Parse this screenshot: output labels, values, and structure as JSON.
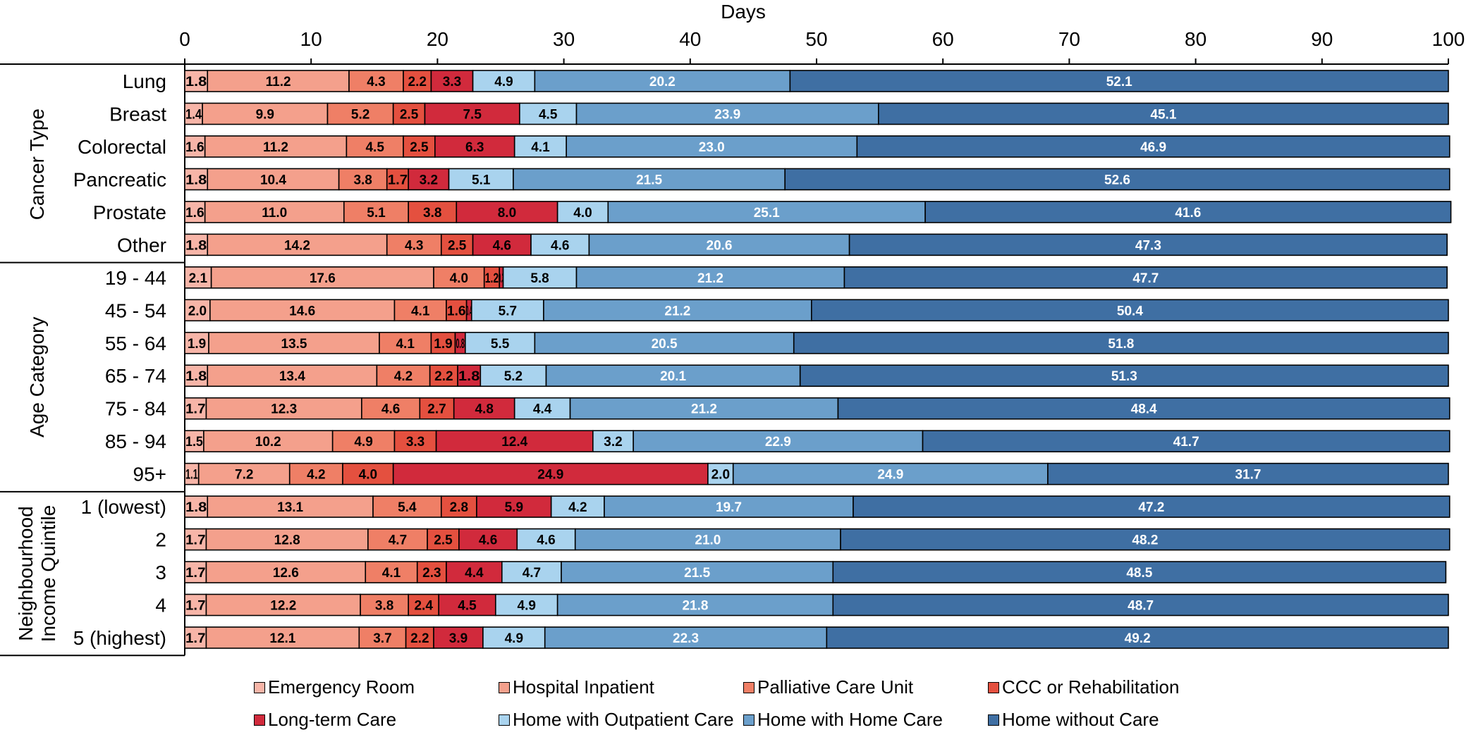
{
  "chart_data": {
    "type": "bar",
    "orientation": "horizontal-stacked",
    "xlabel": "Days",
    "xlim": [
      0,
      100
    ],
    "xticks": [
      "0",
      "10",
      "20",
      "30",
      "40",
      "50",
      "60",
      "70",
      "80",
      "90",
      "100"
    ],
    "legend_position": "bottom",
    "groups": [
      {
        "name": "Cancer Type",
        "lines": [
          "Cancer Type"
        ],
        "rows": [
          "Lung",
          "Breast",
          "Colorectal",
          "Pancreatic",
          "Prostate",
          "Other"
        ]
      },
      {
        "name": "Age Category",
        "lines": [
          "Age Category"
        ],
        "rows": [
          "19 - 44",
          "45 - 54",
          "55 - 64",
          "65 - 74",
          "75 - 84",
          "85 - 94",
          "95+"
        ]
      },
      {
        "name": "Neighbourhood Income Quintile",
        "lines": [
          "Neighbourhood",
          "Income Quintile"
        ],
        "rows": [
          "1 (lowest)",
          "2",
          "3",
          "4",
          "5 (highest)"
        ]
      }
    ],
    "categories": [
      "Lung",
      "Breast",
      "Colorectal",
      "Pancreatic",
      "Prostate",
      "Other",
      "19 - 44",
      "45 - 54",
      "55 - 64",
      "65 - 74",
      "75 - 84",
      "85 - 94",
      "95+",
      "1 (lowest)",
      "2",
      "3",
      "4",
      "5 (highest)"
    ],
    "series": [
      {
        "name": "Emergency Room",
        "color": "#f7b5a8",
        "values": [
          1.8,
          1.4,
          1.6,
          1.8,
          1.6,
          1.8,
          2.1,
          2.0,
          1.9,
          1.8,
          1.7,
          1.5,
          1.1,
          1.8,
          1.7,
          1.7,
          1.7,
          1.7
        ],
        "labels": [
          "1.8",
          "1.4",
          "1.6",
          "1.8",
          "1.6",
          "1.8",
          "2.1",
          "2.0",
          "1.9",
          "1.8",
          "1.7",
          "1.5",
          "1.1",
          "1.8",
          "1.7",
          "1.7",
          "1.7",
          "1.7"
        ]
      },
      {
        "name": "Hospital Inpatient",
        "color": "#f4a08c",
        "values": [
          11.2,
          9.9,
          11.2,
          10.4,
          11.0,
          14.2,
          17.6,
          14.6,
          13.5,
          13.4,
          12.3,
          10.2,
          7.2,
          13.1,
          12.8,
          12.6,
          12.2,
          12.1
        ],
        "labels": [
          "11.2",
          "9.9",
          "11.2",
          "10.4",
          "11.0",
          "14.2",
          "17.6",
          "14.6",
          "13.5",
          "13.4",
          "12.3",
          "10.2",
          "7.2",
          "13.1",
          "12.8",
          "12.6",
          "12.2",
          "12.1"
        ]
      },
      {
        "name": "Palliative Care Unit",
        "color": "#ef7f66",
        "values": [
          4.3,
          5.2,
          4.5,
          3.8,
          5.1,
          4.3,
          4.0,
          4.1,
          4.1,
          4.2,
          4.6,
          4.9,
          4.2,
          5.4,
          4.7,
          4.1,
          3.8,
          3.7
        ],
        "labels": [
          "4.3",
          "5.2",
          "4.5",
          "3.8",
          "5.1",
          "4.3",
          "4.0",
          "4.1",
          "4.1",
          "4.2",
          "4.6",
          "4.9",
          "4.2",
          "5.4",
          "4.7",
          "4.1",
          "3.8",
          "3.7"
        ]
      },
      {
        "name": "CCC or Rehabilitation",
        "color": "#e4503f",
        "values": [
          2.2,
          2.5,
          2.5,
          1.7,
          3.8,
          2.5,
          1.2,
          1.6,
          1.9,
          2.2,
          2.7,
          3.3,
          4.0,
          2.8,
          2.5,
          2.3,
          2.4,
          2.2
        ],
        "labels": [
          "2.2",
          "2.5",
          "2.5",
          "1.7",
          "3.8",
          "2.5",
          "1.2",
          "1.6",
          "1.9",
          "2.2",
          "2.7",
          "3.3",
          "4.0",
          "2.8",
          "2.5",
          "2.3",
          "2.4",
          "2.2"
        ]
      },
      {
        "name": "Long-term Care",
        "color": "#d12a3c",
        "values": [
          3.3,
          7.5,
          6.3,
          3.2,
          8.0,
          4.6,
          0.3,
          0.4,
          0.8,
          1.8,
          4.8,
          12.4,
          24.9,
          5.9,
          4.6,
          4.4,
          4.5,
          3.9
        ],
        "labels": [
          "3.3",
          "7.5",
          "6.3",
          "3.2",
          "8.0",
          "4.6",
          "0.3",
          "0.4",
          "0.8",
          "1.8",
          "4.8",
          "12.4",
          "24.9",
          "5.9",
          "4.6",
          "4.4",
          "4.5",
          "3.9"
        ]
      },
      {
        "name": "Home with Outpatient Care",
        "color": "#a9d3ee",
        "values": [
          4.9,
          4.5,
          4.1,
          5.1,
          4.0,
          4.6,
          5.8,
          5.7,
          5.5,
          5.2,
          4.4,
          3.2,
          2.0,
          4.2,
          4.6,
          4.7,
          4.9,
          4.9
        ],
        "labels": [
          "4.9",
          "4.5",
          "4.1",
          "5.1",
          "4.0",
          "4.6",
          "5.8",
          "5.7",
          "5.5",
          "5.2",
          "4.4",
          "3.2",
          "2.0",
          "4.2",
          "4.6",
          "4.7",
          "4.9",
          "4.9"
        ]
      },
      {
        "name": "Home with Home Care",
        "color": "#6b9fcb",
        "values": [
          20.2,
          23.9,
          23.0,
          21.5,
          25.1,
          20.6,
          21.2,
          21.2,
          20.5,
          20.1,
          21.2,
          22.9,
          24.9,
          19.7,
          21.0,
          21.5,
          21.8,
          22.3
        ],
        "labels": [
          "20.2",
          "23.9",
          "23.0",
          "21.5",
          "25.1",
          "20.6",
          "21.2",
          "21.2",
          "20.5",
          "20.1",
          "21.2",
          "22.9",
          "24.9",
          "19.7",
          "21.0",
          "21.5",
          "21.8",
          "22.3"
        ]
      },
      {
        "name": "Home without Care",
        "color": "#3f6fa3",
        "values": [
          52.1,
          45.1,
          46.9,
          52.6,
          41.6,
          47.3,
          47.7,
          50.4,
          51.8,
          51.3,
          48.4,
          41.7,
          31.7,
          47.2,
          48.2,
          48.5,
          48.7,
          49.2
        ],
        "labels": [
          "52.1",
          "45.1",
          "46.9",
          "52.6",
          "41.6",
          "47.3",
          "47.7",
          "50.4",
          "51.8",
          "51.3",
          "48.4",
          "41.7",
          "31.7",
          "47.2",
          "48.2",
          "48.5",
          "48.7",
          "49.2"
        ]
      }
    ]
  }
}
